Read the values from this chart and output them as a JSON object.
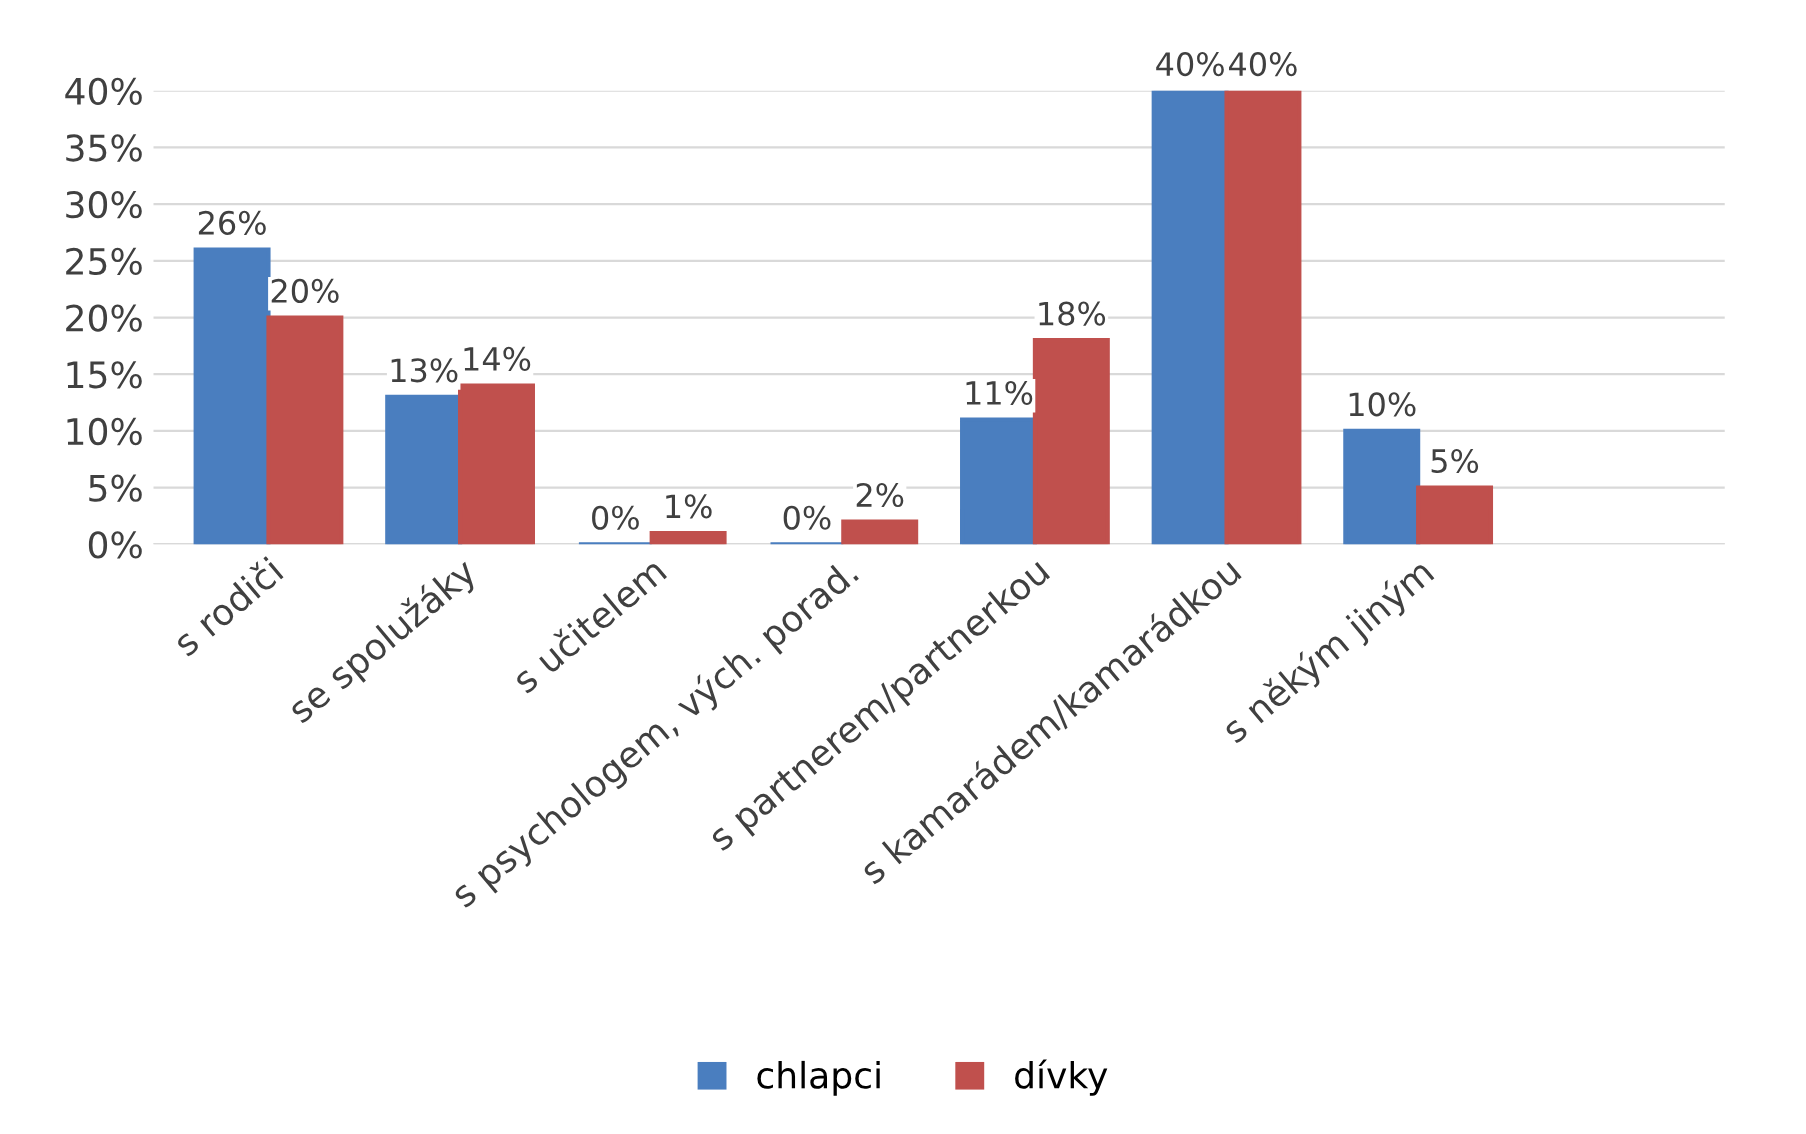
{
  "chart_data": {
    "type": "bar",
    "categories": [
      "s rodiči",
      "se spolužáky",
      "s učitelem",
      "s psychologem, vých. porad.",
      "s partnerem/partnerkou",
      "s kamarádem/kamarádkou",
      "s někým jiným"
    ],
    "series": [
      {
        "name": "chlapci",
        "color": "#4a7ebf",
        "values": [
          26,
          13,
          0,
          0,
          11,
          40,
          10
        ],
        "value_labels": [
          "26%",
          "13%",
          "0%",
          "0%",
          "11%",
          "40%",
          "10%"
        ]
      },
      {
        "name": "dívky",
        "color": "#c0504d",
        "values": [
          20,
          14,
          1,
          2,
          18,
          40,
          5
        ],
        "value_labels": [
          "20%",
          "14%",
          "1%",
          "2%",
          "18%",
          "40%",
          "5%"
        ]
      }
    ],
    "ylim": [
      0,
      40
    ],
    "yticks": [
      {
        "value": 0,
        "label": "0%"
      },
      {
        "value": 5,
        "label": "5%"
      },
      {
        "value": 10,
        "label": "10%"
      },
      {
        "value": 15,
        "label": "15%"
      },
      {
        "value": 20,
        "label": "20%"
      },
      {
        "value": 25,
        "label": "25%"
      },
      {
        "value": 30,
        "label": "30%"
      },
      {
        "value": 35,
        "label": "35%"
      },
      {
        "value": 40,
        "label": "40%"
      }
    ],
    "grid": "y",
    "legend": "bottom"
  }
}
